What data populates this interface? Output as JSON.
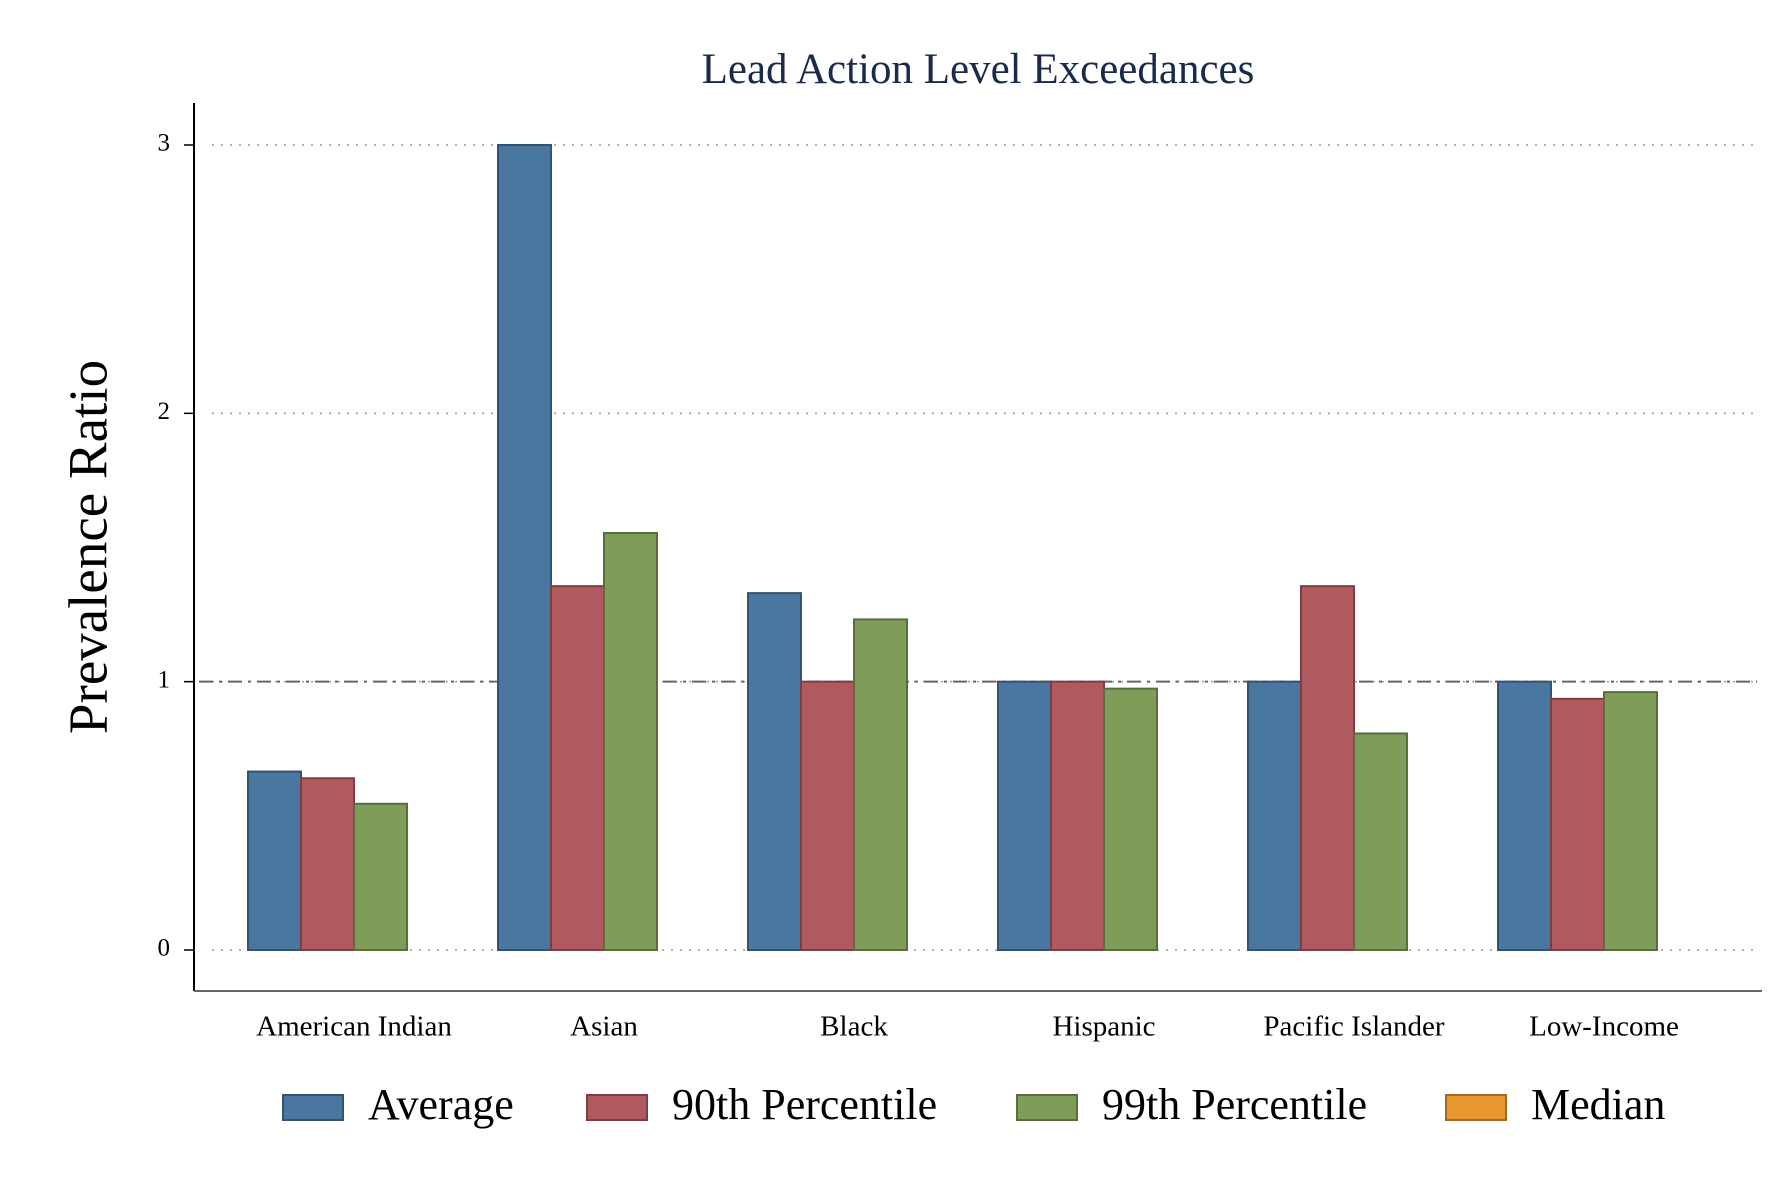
{
  "chart_data": {
    "type": "bar",
    "title": "Lead Action Level Exceedances",
    "y_label": "Prevalence Ratio",
    "categories": [
      "American Indian",
      "Asian",
      "Black",
      "Hispanic",
      "Pacific Islander",
      "Low-Income"
    ],
    "series": [
      {
        "name": "Average",
        "color": "#4a77a0",
        "values": [
          0.665,
          3.0,
          1.33,
          1.0,
          1.0,
          1.0
        ]
      },
      {
        "name": "90th Percentile",
        "color": "#b05a60",
        "values": [
          0.64,
          1.356,
          1.0,
          1.0,
          1.356,
          0.936
        ]
      },
      {
        "name": "99th Percentile",
        "color": "#7f9c58",
        "values": [
          0.545,
          1.554,
          1.232,
          0.974,
          0.807,
          0.961
        ]
      },
      {
        "name": "Median",
        "color": "#e8962e",
        "values": [
          null,
          null,
          null,
          null,
          null,
          null
        ]
      }
    ],
    "ylim": [
      0,
      3
    ],
    "yticks": [
      0,
      1,
      2,
      3
    ],
    "grid": true,
    "reference_line": 1,
    "legend": "bottom"
  }
}
